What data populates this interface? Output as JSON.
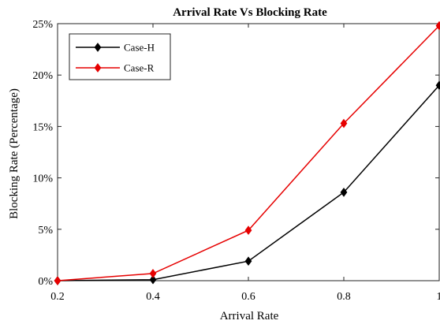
{
  "chart_data": {
    "type": "line",
    "title": "Arrival Rate Vs Blocking Rate",
    "xlabel": "Arrival Rate",
    "ylabel": "Blocking Rate (Percentage)",
    "xlim": [
      0.2,
      1
    ],
    "ylim": [
      0,
      25
    ],
    "xticks": [
      0.2,
      0.4,
      0.6,
      0.8,
      1
    ],
    "xtick_labels": [
      "0.2",
      "0.4",
      "0.6",
      "0.8",
      "1"
    ],
    "yticks": [
      0,
      5,
      10,
      15,
      20,
      25
    ],
    "ytick_labels": [
      "0%",
      "5%",
      "10%",
      "15%",
      "20%",
      "25%"
    ],
    "grid": false,
    "legend_position": "top-left",
    "x": [
      0.2,
      0.4,
      0.6,
      0.8,
      1.0
    ],
    "series": [
      {
        "name": "Case-H",
        "color": "#000000",
        "marker": "diamond",
        "values": [
          0,
          0.1,
          1.9,
          8.6,
          19.0
        ]
      },
      {
        "name": "Case-R",
        "color": "#e60000",
        "marker": "diamond",
        "values": [
          0,
          0.7,
          4.9,
          15.3,
          24.8
        ]
      }
    ]
  }
}
